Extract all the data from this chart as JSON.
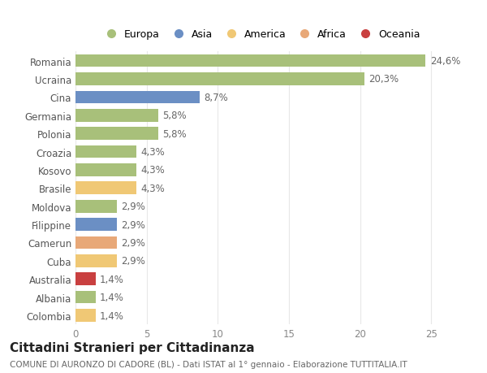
{
  "categories": [
    "Romania",
    "Ucraina",
    "Cina",
    "Germania",
    "Polonia",
    "Croazia",
    "Kosovo",
    "Brasile",
    "Moldova",
    "Filippine",
    "Camerun",
    "Cuba",
    "Australia",
    "Albania",
    "Colombia"
  ],
  "values": [
    24.6,
    20.3,
    8.7,
    5.8,
    5.8,
    4.3,
    4.3,
    4.3,
    2.9,
    2.9,
    2.9,
    2.9,
    1.4,
    1.4,
    1.4
  ],
  "bar_colors": [
    "#a8c07a",
    "#a8c07a",
    "#6b8fc4",
    "#a8c07a",
    "#a8c07a",
    "#a8c07a",
    "#a8c07a",
    "#f0c875",
    "#a8c07a",
    "#6b8fc4",
    "#e8a878",
    "#f0c875",
    "#c94040",
    "#a8c07a",
    "#f0c875"
  ],
  "labels": [
    "24,6%",
    "20,3%",
    "8,7%",
    "5,8%",
    "5,8%",
    "4,3%",
    "4,3%",
    "4,3%",
    "2,9%",
    "2,9%",
    "2,9%",
    "2,9%",
    "1,4%",
    "1,4%",
    "1,4%"
  ],
  "legend_labels": [
    "Europa",
    "Asia",
    "America",
    "Africa",
    "Oceania"
  ],
  "legend_colors": [
    "#a8c07a",
    "#6b8fc4",
    "#f0c875",
    "#e8a878",
    "#c94040"
  ],
  "title": "Cittadini Stranieri per Cittadinanza",
  "subtitle": "COMUNE DI AURONZO DI CADORE (BL) - Dati ISTAT al 1° gennaio - Elaborazione TUTTITALIA.IT",
  "xlim": [
    0,
    26
  ],
  "xticks": [
    0,
    5,
    10,
    15,
    20,
    25
  ],
  "background_color": "#ffffff",
  "grid_color": "#e8e8e8",
  "bar_height": 0.7,
  "label_fontsize": 8.5,
  "tick_fontsize": 8.5,
  "title_fontsize": 11,
  "subtitle_fontsize": 7.5
}
